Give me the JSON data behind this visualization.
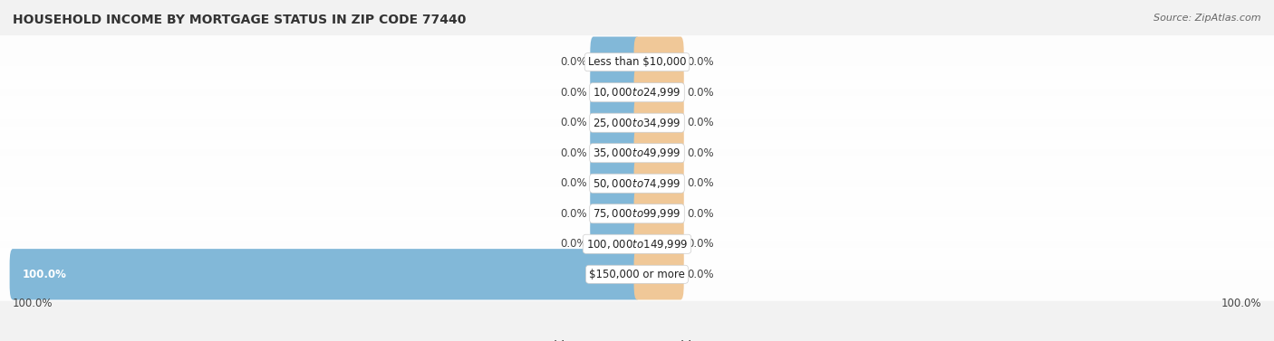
{
  "title": "HOUSEHOLD INCOME BY MORTGAGE STATUS IN ZIP CODE 77440",
  "source": "Source: ZipAtlas.com",
  "categories": [
    "Less than $10,000",
    "$10,000 to $24,999",
    "$25,000 to $34,999",
    "$35,000 to $49,999",
    "$50,000 to $74,999",
    "$75,000 to $99,999",
    "$100,000 to $149,999",
    "$150,000 or more"
  ],
  "without_mortgage": [
    0.0,
    0.0,
    0.0,
    0.0,
    0.0,
    0.0,
    0.0,
    100.0
  ],
  "with_mortgage": [
    0.0,
    0.0,
    0.0,
    0.0,
    0.0,
    0.0,
    0.0,
    0.0
  ],
  "color_without": "#82b8d8",
  "color_with": "#f0c898",
  "bg_color": "#f2f2f2",
  "row_bg_color": "#e8e8ec",
  "title_fontsize": 10,
  "label_fontsize": 8.5,
  "legend_fontsize": 8.5,
  "axis_label_left": "100.0%",
  "axis_label_right": "100.0%",
  "x_min": -100,
  "x_max": 100,
  "stub_size": 7
}
